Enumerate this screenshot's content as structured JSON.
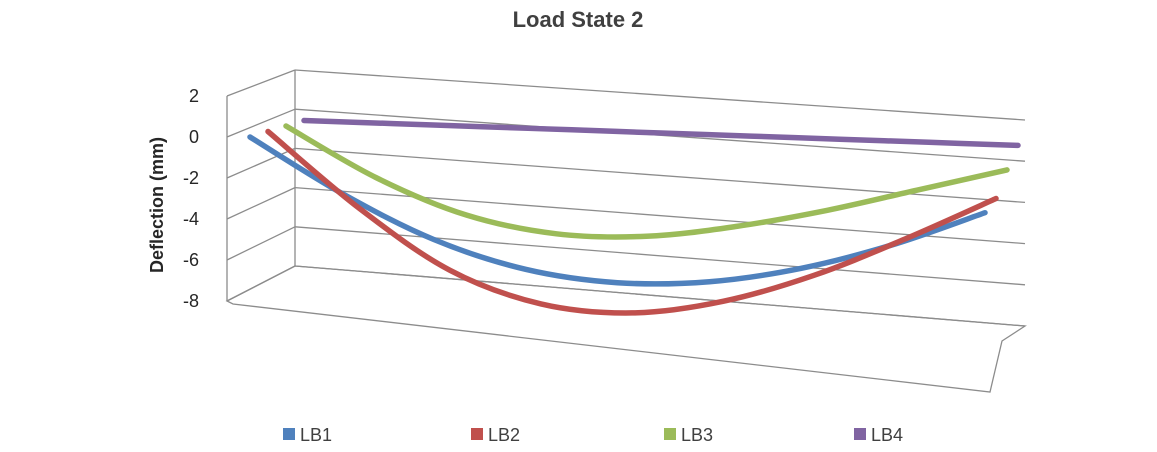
{
  "chart_data": {
    "type": "line",
    "title": "Load State 2",
    "ylabel": "Deflection (mm)",
    "xlabel": "",
    "ylim": [
      -8,
      2
    ],
    "yticks": [
      2,
      0,
      -2,
      -4,
      -6,
      -8
    ],
    "grid": true,
    "legend_position": "bottom",
    "style": "3d-perspective",
    "series": [
      {
        "name": "LB1",
        "color": "#4f81bd",
        "values": [
          0,
          -2.6,
          -4.7,
          -6.0,
          -6.5,
          -6.3,
          -5.5,
          -4.2,
          -2.5
        ]
      },
      {
        "name": "LB2",
        "color": "#c0504d",
        "values": [
          0,
          -3.6,
          -6.5,
          -8.0,
          -8.3,
          -7.6,
          -6.2,
          -4.3,
          -2.2
        ]
      },
      {
        "name": "LB3",
        "color": "#9bbb59",
        "values": [
          0,
          -2.4,
          -4.1,
          -4.9,
          -4.9,
          -4.3,
          -3.4,
          -2.3,
          -1.2
        ]
      },
      {
        "name": "LB4",
        "color": "#8064a2",
        "values": [
          0,
          -0.05,
          -0.1,
          -0.15,
          -0.2,
          -0.25,
          -0.3,
          -0.35,
          -0.4
        ]
      }
    ]
  }
}
